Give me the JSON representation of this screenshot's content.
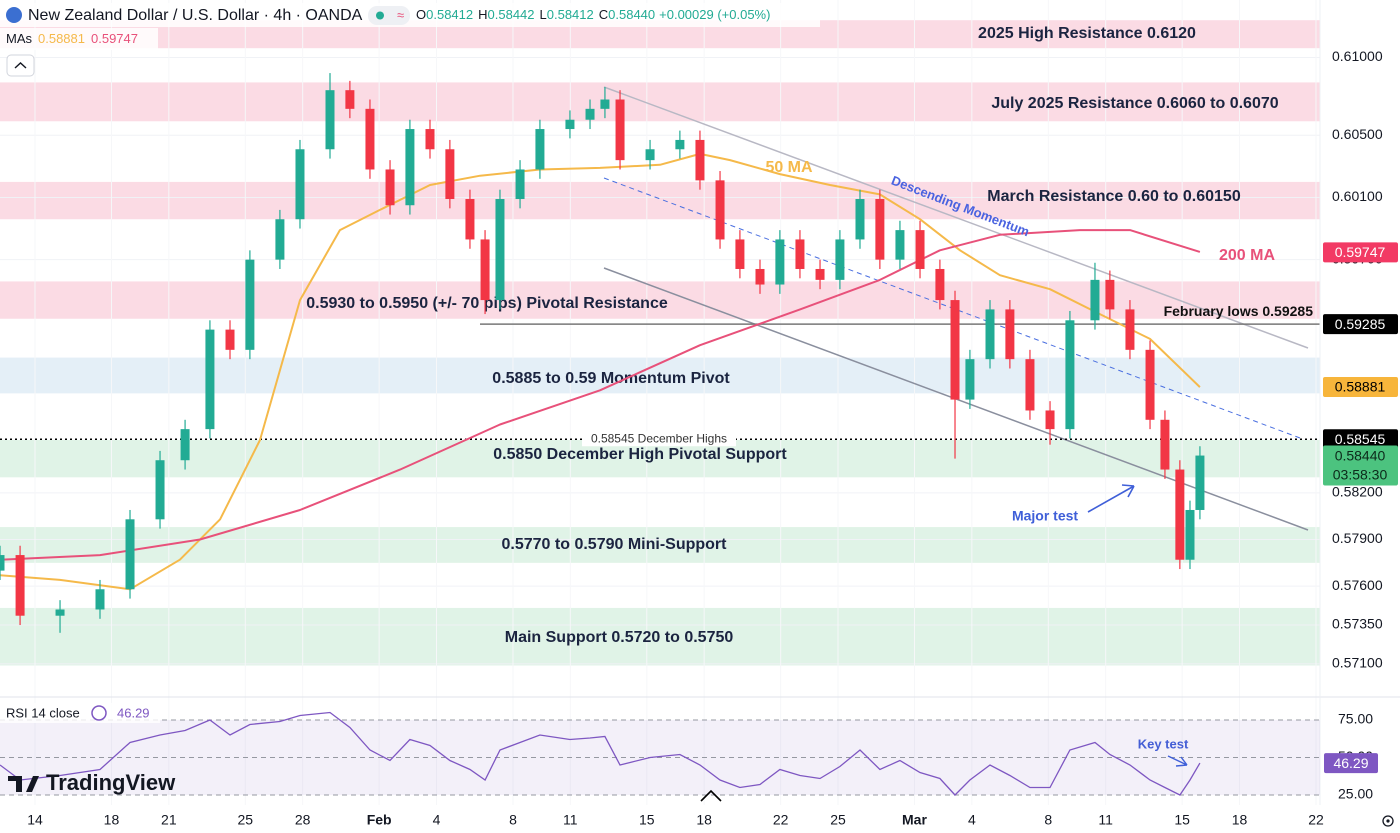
{
  "chart_data": {
    "type": "candlestick",
    "header": {
      "title": "New Zealand Dollar / U.S. Dollar · 4h · OANDA",
      "ohlc": [
        {
          "key": "O",
          "value": "0.58412"
        },
        {
          "key": "H",
          "value": "0.58442"
        },
        {
          "key": "L",
          "value": "0.58412"
        },
        {
          "key": "C",
          "value": "0.58440"
        }
      ],
      "change": "+0.00029 (+0.05%)",
      "ma_label": "MAs",
      "ma_values": [
        "0.58881",
        "0.59747"
      ]
    },
    "up_color": "#22ab94",
    "down_color": "#f23645",
    "grid": true,
    "xlim": [
      -1.83,
      67.21
    ],
    "ylim": [
      0.569,
      0.6137
    ],
    "xticks": [
      {
        "value": 0,
        "label": "14"
      },
      {
        "value": 4,
        "label": "18"
      },
      {
        "value": 7,
        "label": "21"
      },
      {
        "value": 11,
        "label": "25"
      },
      {
        "value": 14,
        "label": "28"
      },
      {
        "value": 18,
        "label": "Feb"
      },
      {
        "value": 21,
        "label": "4"
      },
      {
        "value": 25,
        "label": "8"
      },
      {
        "value": 28,
        "label": "11"
      },
      {
        "value": 32,
        "label": "15"
      },
      {
        "value": 35,
        "label": "18"
      },
      {
        "value": 39,
        "label": "22"
      },
      {
        "value": 42,
        "label": "25"
      },
      {
        "value": 46,
        "label": "Mar"
      },
      {
        "value": 49,
        "label": "4"
      },
      {
        "value": 53,
        "label": "8"
      },
      {
        "value": 56,
        "label": "11"
      },
      {
        "value": 60,
        "label": "15"
      },
      {
        "value": 63,
        "label": "18"
      },
      {
        "value": 67,
        "label": "22"
      }
    ],
    "yticks": [
      {
        "value": 0.61,
        "label": "0.61000"
      },
      {
        "value": 0.605,
        "label": "0.60500"
      },
      {
        "value": 0.601,
        "label": "0.60100"
      },
      {
        "value": 0.597,
        "label": "0.59700"
      },
      {
        "value": 0.582,
        "label": "0.58200"
      },
      {
        "value": 0.579,
        "label": "0.57900"
      },
      {
        "value": 0.576,
        "label": "0.57600"
      },
      {
        "value": 0.5735,
        "label": "0.57350"
      },
      {
        "value": 0.571,
        "label": "0.57100"
      }
    ],
    "x": [
      -1.83,
      -0.78,
      1.31,
      3.4,
      4.97,
      6.54,
      7.85,
      9.15,
      10.2,
      11.24,
      12.81,
      13.86,
      15.43,
      16.47,
      17.52,
      18.57,
      19.61,
      20.66,
      21.7,
      22.75,
      23.54,
      24.32,
      25.37,
      26.41,
      27.98,
      29.03,
      29.81,
      30.6,
      32.17,
      33.73,
      34.78,
      35.83,
      36.87,
      37.92,
      38.96,
      40.01,
      41.06,
      42.1,
      43.15,
      44.19,
      45.24,
      46.29,
      47.33,
      48.12,
      48.9,
      49.95,
      50.99,
      52.04,
      53.09,
      54.13,
      55.44,
      56.22,
      57.27,
      58.32,
      59.1,
      59.88,
      60.41,
      60.93
    ],
    "open": [
      0.577,
      0.578,
      0.5741,
      0.5745,
      0.5758,
      0.5803,
      0.5841,
      0.5861,
      0.5925,
      0.5912,
      0.597,
      0.5996,
      0.6041,
      0.6079,
      0.6067,
      0.6028,
      0.6005,
      0.6054,
      0.6041,
      0.6009,
      0.5983,
      0.5944,
      0.6009,
      0.6028,
      0.6054,
      0.606,
      0.6067,
      0.6073,
      0.6034,
      0.6041,
      0.6047,
      0.6021,
      0.5983,
      0.5964,
      0.5954,
      0.5983,
      0.5964,
      0.5957,
      0.5983,
      0.6009,
      0.597,
      0.5989,
      0.5964,
      0.5944,
      0.588,
      0.5906,
      0.5938,
      0.5906,
      0.5873,
      0.5861,
      0.5931,
      0.5957,
      0.5938,
      0.5912,
      0.5867,
      0.5835,
      0.5777,
      0.5809
    ],
    "high": [
      0.5786,
      0.5786,
      0.5751,
      0.5764,
      0.5809,
      0.5847,
      0.5867,
      0.5931,
      0.5931,
      0.5976,
      0.6002,
      0.6047,
      0.609,
      0.6085,
      0.6073,
      0.6034,
      0.606,
      0.606,
      0.6047,
      0.6015,
      0.5989,
      0.6015,
      0.6034,
      0.606,
      0.6066,
      0.6073,
      0.6081,
      0.6079,
      0.6047,
      0.6053,
      0.6053,
      0.6027,
      0.5989,
      0.597,
      0.5989,
      0.5989,
      0.597,
      0.5989,
      0.6015,
      0.6015,
      0.5995,
      0.5995,
      0.597,
      0.595,
      0.5912,
      0.5944,
      0.5944,
      0.5912,
      0.5879,
      0.5937,
      0.5968,
      0.5963,
      0.5944,
      0.5918,
      0.5873,
      0.5841,
      0.5815,
      0.585
    ],
    "low": [
      0.5764,
      0.5735,
      0.573,
      0.5739,
      0.5752,
      0.5797,
      0.5835,
      0.5855,
      0.5906,
      0.5906,
      0.5964,
      0.599,
      0.6035,
      0.6061,
      0.6022,
      0.5999,
      0.5999,
      0.6035,
      0.6003,
      0.5977,
      0.5935,
      0.5938,
      0.6003,
      0.6022,
      0.6048,
      0.6054,
      0.6061,
      0.6028,
      0.6028,
      0.6035,
      0.6015,
      0.5977,
      0.5958,
      0.5948,
      0.5948,
      0.5958,
      0.5951,
      0.5951,
      0.5977,
      0.5964,
      0.5964,
      0.5958,
      0.5938,
      0.5842,
      0.5874,
      0.59,
      0.59,
      0.5867,
      0.5851,
      0.5855,
      0.5925,
      0.5932,
      0.5906,
      0.5861,
      0.5829,
      0.5771,
      0.5771,
      0.5803
    ],
    "close": [
      0.578,
      0.5741,
      0.5745,
      0.5758,
      0.5803,
      0.5841,
      0.5861,
      0.5925,
      0.5912,
      0.597,
      0.5996,
      0.6041,
      0.6079,
      0.6067,
      0.6028,
      0.6005,
      0.6054,
      0.6041,
      0.6009,
      0.5983,
      0.5944,
      0.6009,
      0.6028,
      0.6054,
      0.606,
      0.6067,
      0.6073,
      0.6034,
      0.6041,
      0.6047,
      0.6021,
      0.5983,
      0.5964,
      0.5954,
      0.5983,
      0.5964,
      0.5957,
      0.5983,
      0.6009,
      0.597,
      0.5989,
      0.5964,
      0.5944,
      0.588,
      0.5906,
      0.5938,
      0.5906,
      0.5873,
      0.5861,
      0.5931,
      0.5957,
      0.5938,
      0.5912,
      0.5867,
      0.5835,
      0.5777,
      0.5809,
      0.5844
    ],
    "moving_averages": [
      {
        "name": "50 MA",
        "color": "#f5b94a",
        "x": [
          -1.83,
          1.31,
          4.97,
          7.58,
          9.68,
          11.77,
          13.86,
          15.95,
          18.04,
          20.66,
          23.28,
          26.41,
          29.55,
          32.69,
          34.78,
          36.35,
          38.96,
          41.58,
          44.19,
          46.29,
          48.38,
          50.47,
          53.09,
          55.7,
          58.32,
          60.93
        ],
        "values": [
          0.5767,
          0.5764,
          0.5758,
          0.5777,
          0.5803,
          0.5854,
          0.5944,
          0.5989,
          0.6002,
          0.6018,
          0.6024,
          0.6028,
          0.6029,
          0.6031,
          0.6038,
          0.6034,
          0.6025,
          0.6018,
          0.6012,
          0.5996,
          0.5976,
          0.596,
          0.5951,
          0.5935,
          0.5919,
          0.5888
        ]
      },
      {
        "name": "200 MA",
        "color": "#e8517a",
        "x": [
          -1.83,
          3.4,
          8.63,
          13.86,
          19.09,
          24.32,
          29.55,
          34.78,
          40.01,
          44.19,
          47.33,
          50.47,
          54.65,
          57.27,
          60.93
        ],
        "values": [
          0.5777,
          0.578,
          0.579,
          0.5809,
          0.5835,
          0.5864,
          0.5886,
          0.5915,
          0.5938,
          0.5957,
          0.5976,
          0.5986,
          0.5989,
          0.5989,
          0.5975
        ]
      }
    ],
    "zones": [
      {
        "label": "2025 High Resistance 0.6120",
        "low": 0.6106,
        "high": 0.6124,
        "color": "#fbdbe4"
      },
      {
        "label": "July 2025 Resistance 0.6060 to 0.6070",
        "low": 0.6059,
        "high": 0.6084,
        "color": "#fbdbe4"
      },
      {
        "label": "March Resistance 0.60 to 0.60150",
        "low": 0.5996,
        "high": 0.602,
        "color": "#fbdbe4"
      },
      {
        "label": "0.5930 to 0.5950 (+/- 70 pips) Pivotal Resistance",
        "low": 0.5932,
        "high": 0.5956,
        "color": "#fbdbe4"
      },
      {
        "label": "0.5885 to 0.59 Momentum Pivot",
        "low": 0.5884,
        "high": 0.5907,
        "color": "#e4eff7"
      },
      {
        "label": "0.5850 December High Pivotal Support",
        "low": 0.583,
        "high": 0.5854,
        "color": "#e0f3e7"
      },
      {
        "label": "0.5770 to 0.5790 Mini-Support",
        "low": 0.5775,
        "high": 0.5798,
        "color": "#e0f3e7"
      },
      {
        "label": "Main Support 0.5720 to 0.5750",
        "low": 0.5709,
        "high": 0.5746,
        "color": "#e0f3e7"
      }
    ],
    "levels": [
      {
        "label": "0.58545 December Highs",
        "value": 0.58545
      },
      {
        "label": "February lows 0.59285",
        "value": 0.59285
      }
    ],
    "annotations": [
      {
        "text": "50 MA",
        "color": "#f5b94a"
      },
      {
        "text": "200 MA",
        "color": "#e8517a"
      },
      {
        "text": "Descending Momentum",
        "color": "#4a63e0"
      },
      {
        "text": "Major test",
        "color": "#3f5fd8"
      },
      {
        "text": "Key test",
        "color": "#3f5fd8"
      }
    ],
    "price_badges": [
      {
        "value": 0.59747,
        "label": "0.59747",
        "color": "#f23a64",
        "text_color": "#ffffff"
      },
      {
        "value": 0.59285,
        "label": "0.59285",
        "color": "#000000",
        "text_color": "#ffffff"
      },
      {
        "value": 0.58881,
        "label": "0.58881",
        "color": "#f7b53b",
        "text_color": "#000000"
      },
      {
        "value": 0.58545,
        "label": "0.58545",
        "color": "#000000",
        "text_color": "#ffffff"
      },
      {
        "value": 0.5844,
        "label": "0.58440",
        "sub": "03:58:30",
        "color": "#4cc37f",
        "text_color": "#0c2a1a"
      }
    ],
    "rsi": {
      "title": "RSI 14 close",
      "value_label": "46.29",
      "color": "#7e57c2",
      "ylim": [
        21.7,
        88.3
      ],
      "yticks": [
        {
          "value": 75,
          "label": "75.00"
        },
        {
          "value": 50,
          "label": "50.00"
        },
        {
          "value": 25,
          "label": "25.00"
        }
      ],
      "values": [
        45,
        35,
        38,
        42,
        60,
        65,
        68,
        75,
        65,
        72,
        74,
        78,
        80,
        70,
        55,
        48,
        62,
        58,
        48,
        42,
        35,
        55,
        60,
        65,
        62,
        63,
        64,
        45,
        50,
        52,
        45,
        35,
        30,
        32,
        42,
        38,
        36,
        44,
        55,
        42,
        48,
        40,
        36,
        25,
        35,
        45,
        38,
        30,
        30,
        55,
        60,
        52,
        45,
        35,
        30,
        25,
        35,
        46.29
      ]
    },
    "watermark": "TradingView"
  }
}
